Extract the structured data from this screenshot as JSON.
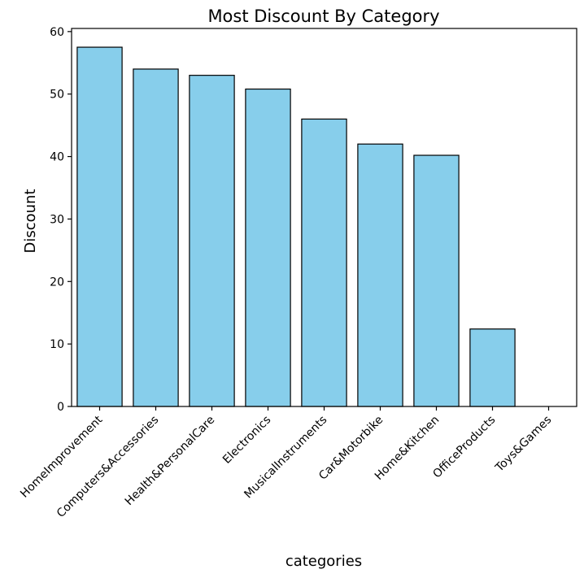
{
  "chart_data": {
    "type": "bar",
    "title": "Most Discount By Category",
    "xlabel": "categories",
    "ylabel": "Discount",
    "categories": [
      "HomeImprovement",
      "Computers&Accessories",
      "Health&PersonalCare",
      "Electronics",
      "MusicalInstruments",
      "Car&Motorbike",
      "Home&Kitchen",
      "OfficeProducts",
      "Toys&Games"
    ],
    "values": [
      57.5,
      54.0,
      53.0,
      50.8,
      46.0,
      42.0,
      40.2,
      12.4,
      0.0
    ],
    "ylim": [
      0,
      60.5
    ],
    "yticks": [
      0,
      10,
      20,
      30,
      40,
      50,
      60
    ],
    "grid": false,
    "bar_color": "#87ceeb",
    "edge_color": "#000000"
  }
}
